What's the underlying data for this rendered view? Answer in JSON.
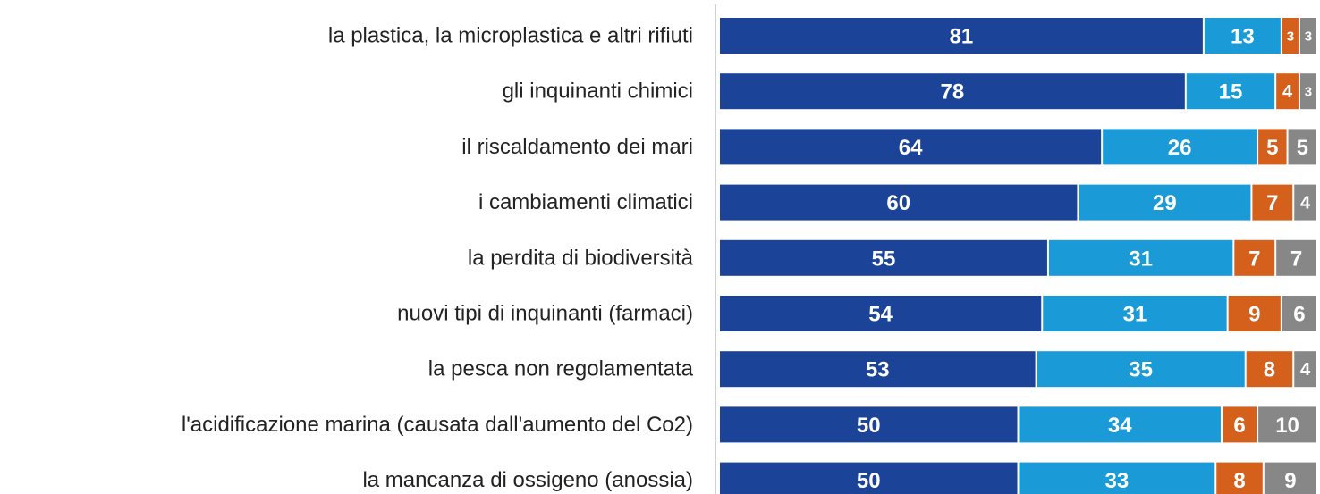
{
  "chart_data": {
    "type": "bar",
    "orientation": "horizontal",
    "stacked": true,
    "categories": [
      "la plastica, la microplastica e altri rifiuti",
      "gli inquinanti chimici",
      "il riscaldamento dei mari",
      "i cambiamenti climatici",
      "la perdita di biodiversità",
      "nuovi tipi di inquinanti (farmaci)",
      "la pesca non regolamentata",
      "l'acidificazione marina (causata dall'aumento del Co2)",
      "la mancanza di ossigeno (anossia)"
    ],
    "series": [
      {
        "color": "#1b4397",
        "values": [
          81,
          78,
          64,
          60,
          55,
          54,
          53,
          50,
          50
        ]
      },
      {
        "color": "#1a9ad7",
        "values": [
          13,
          15,
          26,
          29,
          31,
          31,
          35,
          34,
          33
        ]
      },
      {
        "color": "#d4601b",
        "values": [
          3,
          4,
          5,
          7,
          7,
          9,
          8,
          6,
          8
        ]
      },
      {
        "color": "#878787",
        "values": [
          3,
          3,
          5,
          4,
          7,
          6,
          4,
          10,
          9
        ]
      }
    ],
    "xlim": [
      0,
      100
    ]
  }
}
